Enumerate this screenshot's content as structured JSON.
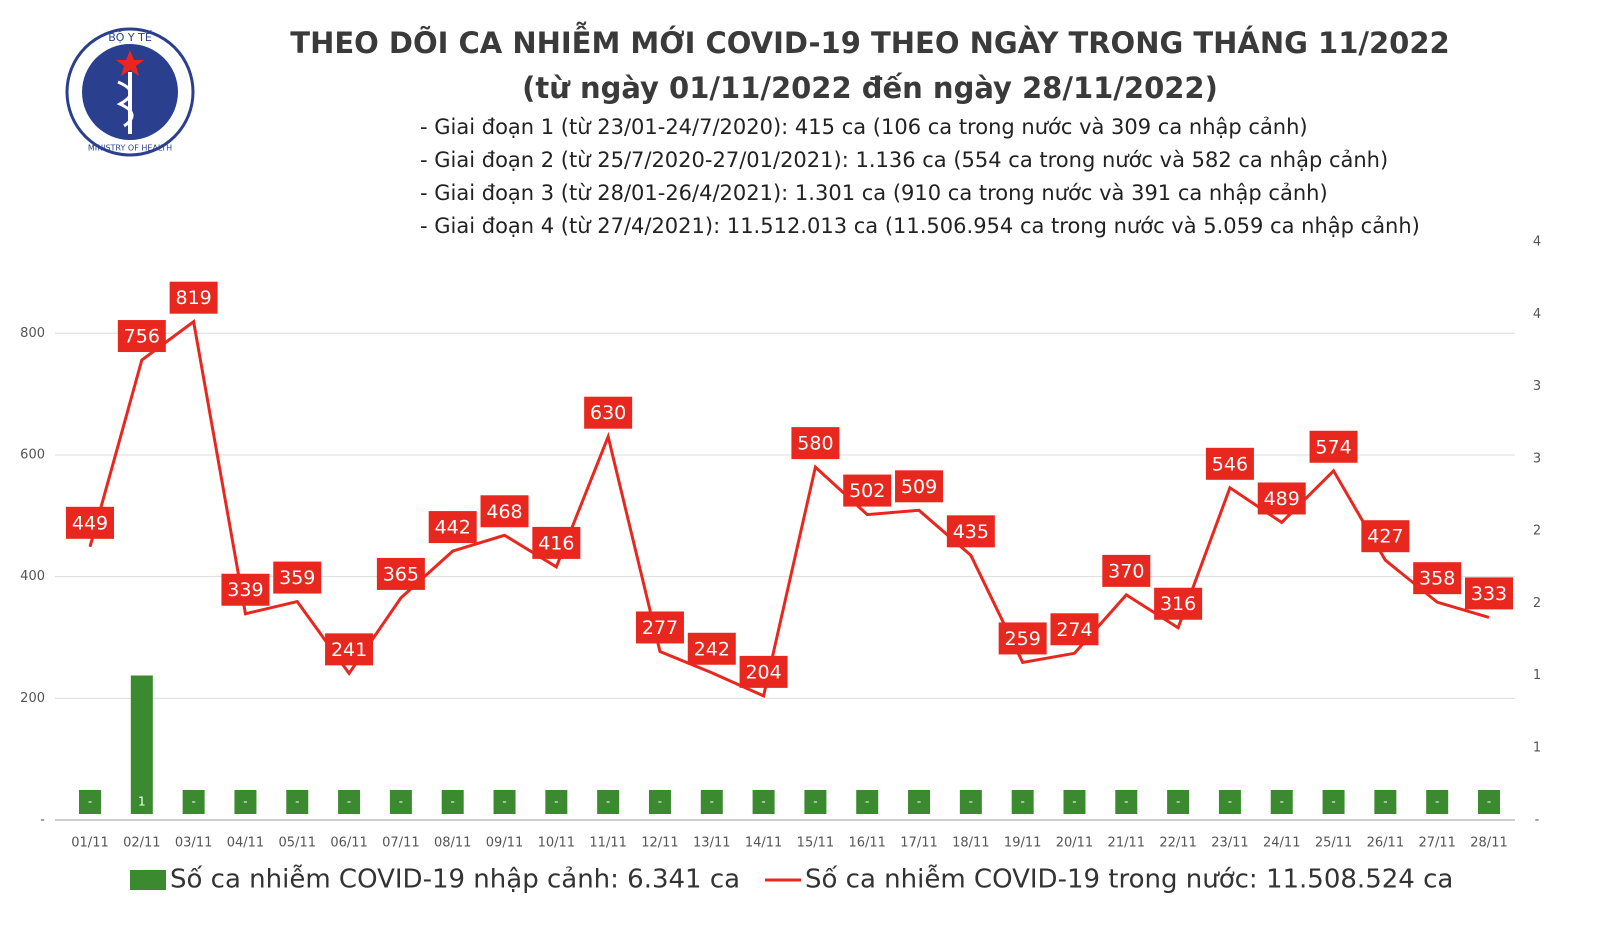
{
  "logo": {
    "top_text": "BỘ Y TẾ",
    "bottom_text": "MINISTRY OF HEALTH"
  },
  "chart_data": {
    "type": "combo",
    "title": "THEO DÕI CA NHIỄM MỚI COVID-19 THEO NGÀY TRONG THÁNG 11/2022",
    "subtitle": "(từ ngày 01/11/2022 đến ngày 28/11/2022)",
    "notes": [
      "- Giai đoạn 1 (từ 23/01-24/7/2020): 415 ca (106 ca trong nước và 309 ca nhập cảnh)",
      "- Giai đoạn 2 (từ 25/7/2020-27/01/2021): 1.136 ca (554 ca trong nước và 582 ca nhập cảnh)",
      "- Giai đoạn 3 (từ 28/01-26/4/2021): 1.301 ca (910 ca trong nước và 391 ca nhập cảnh)",
      "- Giai đoạn 4 (từ 27/4/2021): 11.512.013 ca (11.506.954 ca trong nước và 5.059 ca nhập cảnh)"
    ],
    "categories": [
      "01/11",
      "02/11",
      "03/11",
      "04/11",
      "05/11",
      "06/11",
      "07/11",
      "08/11",
      "09/11",
      "10/11",
      "11/11",
      "12/11",
      "13/11",
      "14/11",
      "15/11",
      "16/11",
      "17/11",
      "18/11",
      "19/11",
      "20/11",
      "21/11",
      "22/11",
      "23/11",
      "24/11",
      "25/11",
      "26/11",
      "27/11",
      "28/11"
    ],
    "series": [
      {
        "name": "Số ca nhiễm COVID-19 nhập cảnh: 6.341 ca",
        "color": "#3b8a2f",
        "type": "bar",
        "axis": "y2",
        "values": [
          0,
          1,
          0,
          0,
          0,
          0,
          0,
          0,
          0,
          0,
          0,
          0,
          0,
          0,
          0,
          0,
          0,
          0,
          0,
          0,
          0,
          0,
          0,
          0,
          0,
          0,
          0,
          0
        ],
        "value_labels": [
          "-",
          "1",
          "-",
          "-",
          "-",
          "-",
          "-",
          "-",
          "-",
          "-",
          "-",
          "-",
          "-",
          "-",
          "-",
          "-",
          "-",
          "-",
          "-",
          "-",
          "-",
          "-",
          "-",
          "-",
          "-",
          "-",
          "-",
          "-"
        ]
      },
      {
        "name": "Số ca nhiễm COVID-19 trong nước: 11.508.524 ca",
        "color": "#e8281e",
        "type": "line",
        "axis": "y",
        "values": [
          449,
          756,
          819,
          339,
          359,
          241,
          365,
          442,
          468,
          416,
          630,
          277,
          242,
          204,
          580,
          502,
          509,
          435,
          259,
          274,
          370,
          316,
          546,
          489,
          574,
          427,
          358,
          333
        ]
      }
    ],
    "ylim": [
      0,
      950
    ],
    "yticks": [
      {
        "value": 0,
        "label": "-"
      },
      200,
      400,
      600,
      800
    ],
    "y2lim": [
      0,
      4
    ],
    "y2ticks": [
      {
        "value": 0,
        "label": "-"
      },
      {
        "value": 0.5,
        "label": "1"
      },
      1,
      {
        "value": 1.5,
        "label": "2"
      },
      2,
      {
        "value": 2.5,
        "label": "3"
      },
      3,
      {
        "value": 3.5,
        "label": "4"
      },
      4
    ],
    "grid": true
  }
}
